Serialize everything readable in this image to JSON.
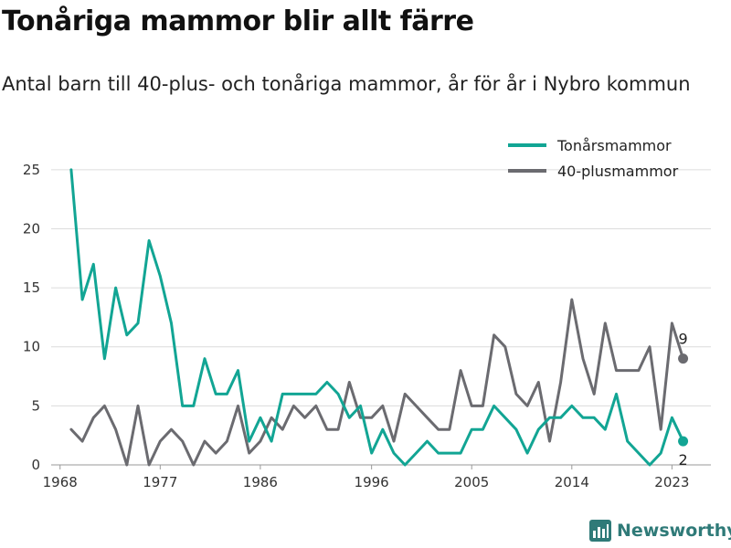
{
  "header": {
    "title": "Tonåriga mammor blir allt färre",
    "subtitle": "Antal barn till 40-plus- och tonåriga mammor, år för år i Nybro kommun"
  },
  "brand": {
    "name": "Newsworthy"
  },
  "colors": {
    "teen": "#12a594",
    "forty": "#6b6b70",
    "grid": "#dcdcdc",
    "axis": "#999999"
  },
  "chart_data": {
    "type": "line",
    "title": "Tonåriga mammor blir allt färre",
    "subtitle": "Antal barn till 40-plus- och tonåriga mammor, år för år i Nybro kommun",
    "xlabel": "",
    "ylabel": "",
    "x_ticks": [
      1968,
      1977,
      1986,
      1996,
      2005,
      2014,
      2023
    ],
    "y_ticks": [
      0,
      5,
      10,
      15,
      20,
      25
    ],
    "ylim": [
      0,
      27
    ],
    "xlim": [
      1967.2,
      2026.5
    ],
    "grid": true,
    "legend_position": "top-right",
    "x": [
      1969,
      1970,
      1971,
      1972,
      1973,
      1974,
      1975,
      1976,
      1977,
      1978,
      1979,
      1980,
      1981,
      1982,
      1983,
      1984,
      1985,
      1986,
      1987,
      1988,
      1989,
      1990,
      1991,
      1992,
      1993,
      1994,
      1995,
      1996,
      1997,
      1998,
      1999,
      2000,
      2001,
      2002,
      2003,
      2004,
      2005,
      2006,
      2007,
      2008,
      2009,
      2010,
      2011,
      2012,
      2013,
      2014,
      2015,
      2016,
      2017,
      2018,
      2019,
      2020,
      2021,
      2022,
      2023,
      2024
    ],
    "series": [
      {
        "name": "Tonårsmammor",
        "color": "#12a594",
        "values": [
          25,
          14,
          17,
          9,
          15,
          11,
          12,
          19,
          16,
          12,
          5,
          5,
          9,
          6,
          6,
          8,
          2,
          4,
          2,
          6,
          6,
          6,
          6,
          7,
          6,
          4,
          5,
          1,
          3,
          1,
          0,
          1,
          2,
          1,
          1,
          1,
          3,
          3,
          5,
          4,
          3,
          1,
          3,
          4,
          4,
          5,
          4,
          4,
          3,
          6,
          2,
          1,
          0,
          1,
          4,
          2
        ],
        "end_label": "2"
      },
      {
        "name": "40-plusmammor",
        "color": "#6b6b70",
        "values": [
          3,
          2,
          4,
          5,
          3,
          0,
          5,
          0,
          2,
          3,
          2,
          0,
          2,
          1,
          2,
          5,
          1,
          2,
          4,
          3,
          5,
          4,
          5,
          3,
          3,
          7,
          4,
          4,
          5,
          2,
          6,
          5,
          4,
          3,
          3,
          8,
          5,
          5,
          11,
          10,
          6,
          5,
          7,
          2,
          7,
          14,
          9,
          6,
          12,
          8,
          8,
          8,
          10,
          3,
          12,
          9
        ],
        "end_label": "9"
      }
    ]
  }
}
